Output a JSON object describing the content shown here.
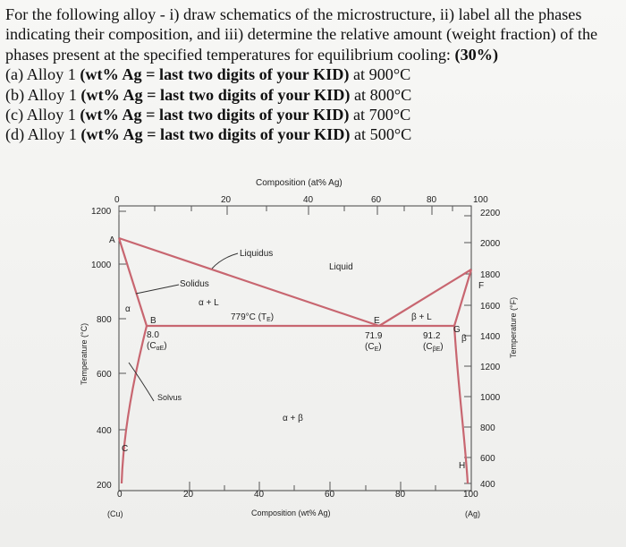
{
  "question": {
    "intro": "For the following alloy - i) draw schematics of the microstructure, ii) label all the phases indicating their composition, and iii) determine the relative amount (weight fraction) of the phases present at the specified temperatures for equilibrium cooling: ",
    "points": "(30%)",
    "parts": [
      {
        "prefix": "(a) Alloy 1 ",
        "bold": "(wt% Ag = last two digits of your KID)",
        "suffix": " at 900°C"
      },
      {
        "prefix": "(b) Alloy 1 ",
        "bold": "(wt% Ag = last two digits of your KID)",
        "suffix": " at 800°C"
      },
      {
        "prefix": "(c) Alloy 1 ",
        "bold": "(wt% Ag = last two digits of your KID)",
        "suffix": " at 700°C"
      },
      {
        "prefix": "(d) Alloy 1 ",
        "bold": "(wt% Ag = last two digits of your KID)",
        "suffix": " at 500°C"
      }
    ]
  },
  "diagram": {
    "top_axis_title": "Composition (at% Ag)",
    "top_ticks": [
      "0",
      "20",
      "40",
      "60",
      "80",
      "100"
    ],
    "bottom_axis_title": "Composition (wt% Ag)",
    "bottom_ticks": [
      "0",
      "20",
      "40",
      "60",
      "80",
      "100"
    ],
    "left_axis_title": "Temperature (°C)",
    "left_ticks": [
      "1200",
      "1000",
      "800",
      "600",
      "400",
      "200"
    ],
    "right_axis_title": "Temperature (°F)",
    "right_ticks": [
      "2200",
      "2000",
      "1800",
      "1600",
      "1400",
      "1200",
      "1000",
      "800",
      "600",
      "400"
    ],
    "endpoint_left": "(Cu)",
    "endpoint_right": "(Ag)",
    "labels": {
      "liquidus": "Liquidus",
      "liquid": "Liquid",
      "solidus": "Solidus",
      "alpha": "α",
      "alpha_plus_L": "α + L",
      "eutectic_temp": "779°C (T",
      "eutectic_temp_sub": "E",
      "eutectic_temp_close": ")",
      "beta_plus_L": "β + L",
      "beta": "β",
      "solvus": "Solvus",
      "alpha_plus_beta": "α + β",
      "point_A": "A",
      "point_B": "B",
      "point_C": "C",
      "point_E": "E",
      "point_F": "F",
      "point_G": "G",
      "point_H": "H",
      "c_alpha_e_val": "8.0",
      "c_alpha_e_sym": "(C",
      "c_alpha_e_sub": "αE",
      "c_e_val": "71.9",
      "c_e_sym": "(C",
      "c_e_sub": "E",
      "c_beta_e_val": "91.2",
      "c_beta_e_sym": "(C",
      "c_beta_e_sub": "βE",
      "close_paren": ")"
    },
    "colors": {
      "phase_lines": "#c86670",
      "frame": "#444444"
    }
  }
}
